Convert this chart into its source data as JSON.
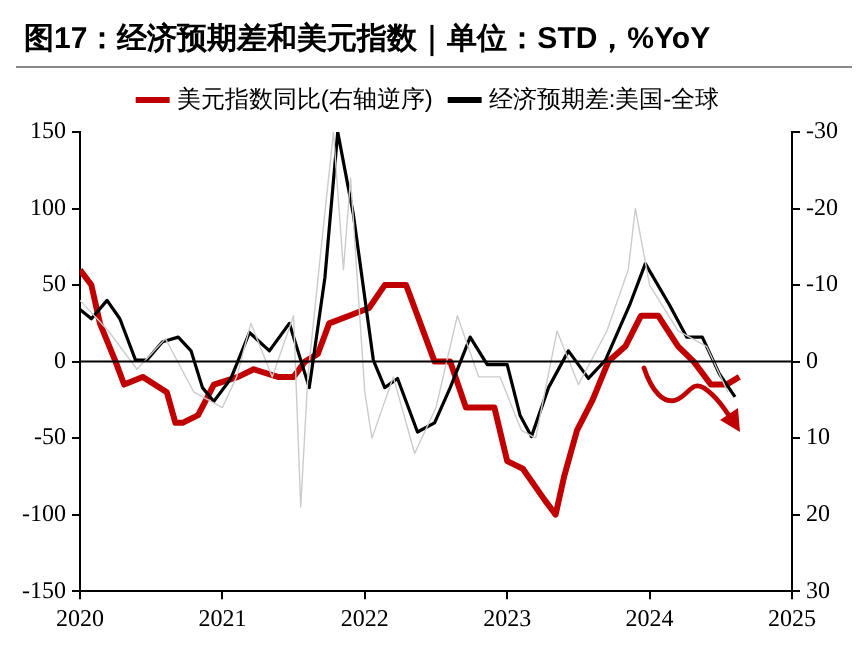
{
  "chart_data": {
    "type": "line",
    "title": "图17：经济预期差和美元指数｜单位：STD，%YoY",
    "xlim": [
      2020,
      2025
    ],
    "xticks": [
      2020,
      2021,
      2022,
      2023,
      2024,
      2025
    ],
    "ylim": [
      -150,
      150
    ],
    "yticks": [
      -150,
      -100,
      -50,
      0,
      50,
      100,
      150
    ],
    "y2lim": [
      30,
      -30
    ],
    "y2ticks": [
      -30,
      -20,
      -10,
      0,
      10,
      20,
      30
    ],
    "grid": false,
    "legend": "top",
    "marker": "none",
    "line_style": "solid",
    "ref_lines": [
      {
        "axis": "y",
        "value": 0,
        "color": "#000000"
      }
    ],
    "series": [
      {
        "name": "美元指数同比(右轴逆序)",
        "color": "#c00000",
        "axis": "y2",
        "x": [
          2020.0,
          2020.08,
          2020.14,
          2020.25,
          2020.31,
          2020.44,
          2020.61,
          2020.67,
          2020.72,
          2020.83,
          2020.94,
          2021.11,
          2021.22,
          2021.39,
          2021.5,
          2021.58,
          2021.67,
          2021.75,
          2021.89,
          2022.03,
          2022.14,
          2022.29,
          2022.43,
          2022.49,
          2022.6,
          2022.71,
          2022.91,
          2023.0,
          2023.11,
          2023.26,
          2023.34,
          2023.4,
          2023.49,
          2023.6,
          2023.71,
          2023.83,
          2023.94,
          2024.06,
          2024.2,
          2024.31,
          2024.43,
          2024.54,
          2024.63
        ],
        "values": [
          -12,
          -10,
          -5,
          0,
          3,
          2,
          4,
          8,
          8,
          7,
          3,
          2,
          1,
          2,
          2,
          0,
          -1,
          -5,
          -6,
          -7,
          -10,
          -10,
          -3,
          0,
          0,
          6,
          6,
          13,
          14,
          18,
          20,
          15,
          9,
          5,
          0,
          -2,
          -6,
          -6,
          -2,
          0,
          3,
          3,
          2
        ]
      },
      {
        "name": "经济预期差:美国-全球",
        "color": "#000000",
        "axis": "y",
        "x": [
          2020.0,
          2020.08,
          2020.19,
          2020.28,
          2020.39,
          2020.47,
          2020.58,
          2020.69,
          2020.78,
          2020.86,
          2020.94,
          2021.06,
          2021.19,
          2021.33,
          2021.47,
          2021.61,
          2021.72,
          2021.81,
          2021.92,
          2022.06,
          2022.14,
          2022.23,
          2022.37,
          2022.49,
          2022.6,
          2022.74,
          2022.86,
          2023.0,
          2023.09,
          2023.17,
          2023.29,
          2023.43,
          2023.57,
          2023.69,
          2023.86,
          2023.97,
          2024.14,
          2024.26,
          2024.37,
          2024.49,
          2024.6
        ],
        "values": [
          34,
          28,
          40,
          28,
          1,
          1,
          13,
          16,
          7,
          -17,
          -26,
          -11,
          19,
          7,
          25,
          -17,
          55,
          150,
          96,
          1,
          -17,
          -11,
          -46,
          -40,
          -17,
          16,
          -2,
          -2,
          -35,
          -49,
          -17,
          7,
          -11,
          1,
          37,
          64,
          37,
          16,
          16,
          -8,
          -23
        ]
      },
      {
        "color": "#cccccc",
        "axis": "y",
        "x": [
          2020.0,
          2020.2,
          2020.4,
          2020.6,
          2020.8,
          2021.0,
          2021.1,
          2021.2,
          2021.35,
          2021.5,
          2021.55,
          2021.6,
          2021.7,
          2021.78,
          2021.85,
          2021.9,
          2022.0,
          2022.05,
          2022.2,
          2022.35,
          2022.5,
          2022.65,
          2022.8,
          2022.95,
          2023.1,
          2023.2,
          2023.35,
          2023.5,
          2023.7,
          2023.85,
          2023.9,
          2024.0,
          2024.2,
          2024.4,
          2024.55
        ],
        "values": [
          40,
          20,
          -5,
          15,
          -20,
          -30,
          -10,
          25,
          -10,
          30,
          -95,
          -10,
          80,
          150,
          60,
          120,
          -20,
          -50,
          -10,
          -60,
          -30,
          30,
          -10,
          -10,
          -45,
          -50,
          20,
          -15,
          20,
          60,
          100,
          50,
          20,
          10,
          -20
        ]
      }
    ]
  }
}
